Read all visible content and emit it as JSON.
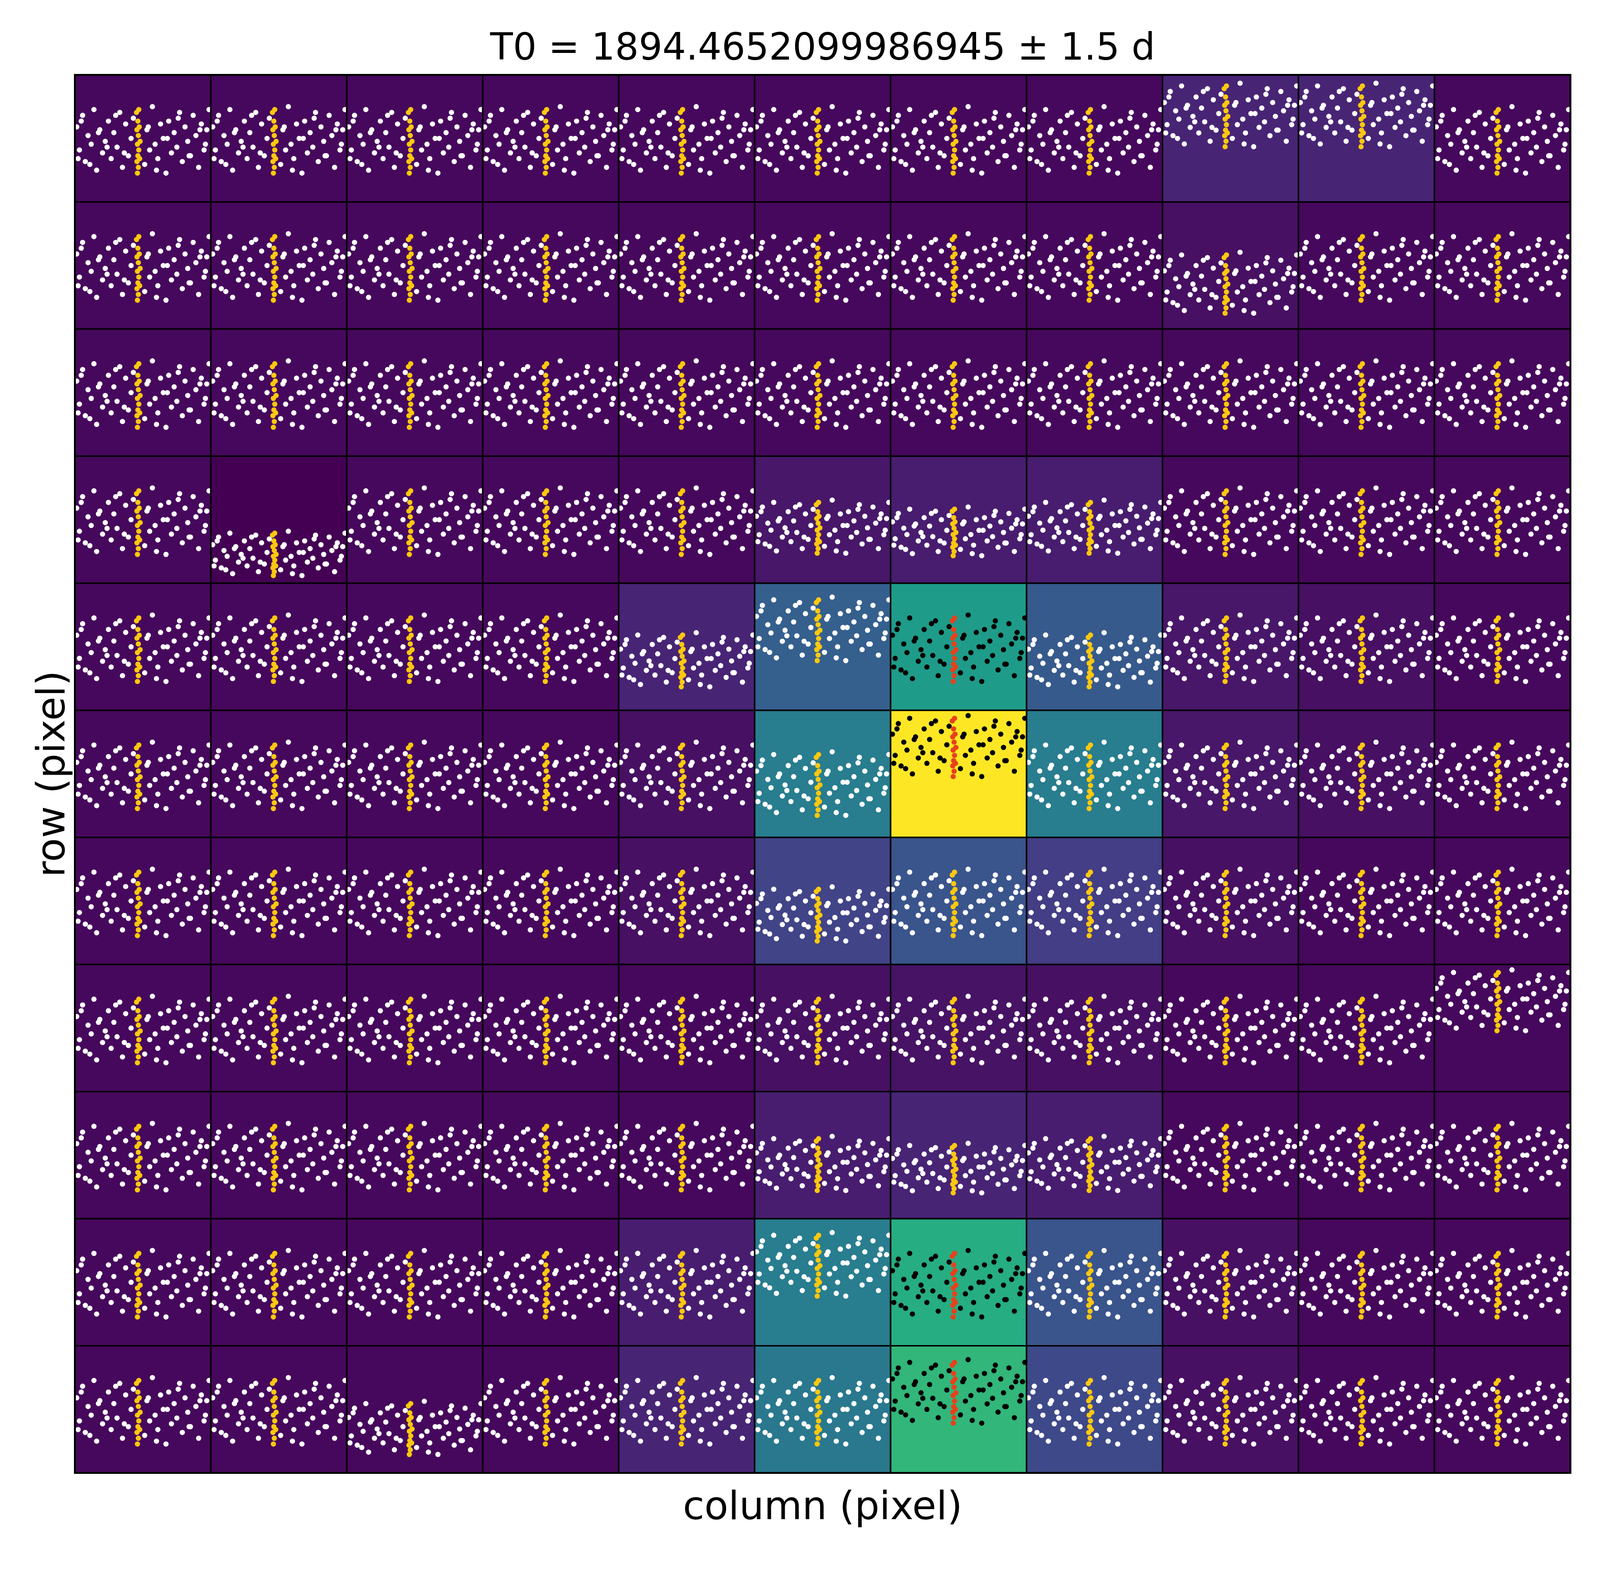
{
  "chart_data": {
    "type": "pixel_grid_scatter",
    "title": "T0 = 1894.4652099986945 ± 1.5 d",
    "x_label": "column (pixel)",
    "y_label": "row (pixel)",
    "tick_labels": false,
    "xlim": [
      -1.5,
      1.5
    ],
    "color_lim": [
      0,
      1
    ],
    "background": [
      [
        0.02,
        0.02,
        0.02,
        0.02,
        0.02,
        0.02,
        0.02,
        0.02,
        0.1,
        0.1,
        0.02
      ],
      [
        0.02,
        0.02,
        0.02,
        0.02,
        0.02,
        0.02,
        0.02,
        0.02,
        0.04,
        0.02,
        0.02
      ],
      [
        0.02,
        0.02,
        0.02,
        0.02,
        0.02,
        0.02,
        0.02,
        0.02,
        0.02,
        0.02,
        0.02
      ],
      [
        0.02,
        0.0,
        0.02,
        0.02,
        0.02,
        0.06,
        0.08,
        0.08,
        0.02,
        0.02,
        0.02
      ],
      [
        0.02,
        0.02,
        0.02,
        0.02,
        0.1,
        0.3,
        0.55,
        0.28,
        0.06,
        0.04,
        0.02
      ],
      [
        0.02,
        0.02,
        0.02,
        0.02,
        0.04,
        0.42,
        1.0,
        0.42,
        0.06,
        0.04,
        0.02
      ],
      [
        0.02,
        0.02,
        0.02,
        0.02,
        0.04,
        0.2,
        0.26,
        0.18,
        0.04,
        0.02,
        0.02
      ],
      [
        0.02,
        0.02,
        0.02,
        0.02,
        0.02,
        0.04,
        0.05,
        0.04,
        0.02,
        0.02,
        0.02
      ],
      [
        0.02,
        0.02,
        0.02,
        0.02,
        0.02,
        0.08,
        0.1,
        0.08,
        0.02,
        0.02,
        0.02
      ],
      [
        0.02,
        0.02,
        0.02,
        0.02,
        0.08,
        0.42,
        0.62,
        0.26,
        0.04,
        0.02,
        0.02
      ],
      [
        0.02,
        0.02,
        0.02,
        0.02,
        0.1,
        0.4,
        0.66,
        0.22,
        0.04,
        0.02,
        0.02
      ]
    ],
    "ylims": [
      [
        [
          0.978,
          1.022
        ],
        [
          0.978,
          1.022
        ],
        [
          0.978,
          1.022
        ],
        [
          0.978,
          1.022
        ],
        [
          0.978,
          1.022
        ],
        [
          0.978,
          1.022
        ],
        [
          0.978,
          1.022
        ],
        [
          0.978,
          1.022
        ],
        [
          0.968,
          1.014
        ],
        [
          0.968,
          1.014
        ],
        [
          0.978,
          1.022
        ]
      ],
      [
        [
          0.978,
          1.022
        ],
        [
          0.978,
          1.022
        ],
        [
          0.978,
          1.022
        ],
        [
          0.978,
          1.022
        ],
        [
          0.978,
          1.022
        ],
        [
          0.978,
          1.022
        ],
        [
          0.978,
          1.022
        ],
        [
          0.978,
          1.022
        ],
        [
          0.982,
          1.03
        ],
        [
          0.978,
          1.022
        ],
        [
          0.978,
          1.022
        ]
      ],
      [
        [
          0.978,
          1.022
        ],
        [
          0.978,
          1.022
        ],
        [
          0.978,
          1.022
        ],
        [
          0.978,
          1.022
        ],
        [
          0.978,
          1.022
        ],
        [
          0.978,
          1.022
        ],
        [
          0.978,
          1.022
        ],
        [
          0.978,
          1.022
        ],
        [
          0.978,
          1.022
        ],
        [
          0.978,
          1.022
        ],
        [
          0.978,
          1.022
        ]
      ],
      [
        [
          0.978,
          1.022
        ],
        [
          0.984,
          1.05
        ],
        [
          0.978,
          1.022
        ],
        [
          0.978,
          1.022
        ],
        [
          0.978,
          1.022
        ],
        [
          0.975,
          1.03
        ],
        [
          0.975,
          1.035
        ],
        [
          0.975,
          1.03
        ],
        [
          0.978,
          1.022
        ],
        [
          0.978,
          1.022
        ],
        [
          0.978,
          1.022
        ]
      ],
      [
        [
          0.978,
          1.022
        ],
        [
          0.978,
          1.022
        ],
        [
          0.978,
          1.022
        ],
        [
          0.978,
          1.022
        ],
        [
          0.978,
          1.032
        ],
        [
          0.97,
          1.016
        ],
        [
          0.978,
          1.022
        ],
        [
          0.978,
          1.032
        ],
        [
          0.978,
          1.022
        ],
        [
          0.978,
          1.022
        ],
        [
          0.978,
          1.022
        ]
      ],
      [
        [
          0.978,
          1.022
        ],
        [
          0.978,
          1.022
        ],
        [
          0.978,
          1.022
        ],
        [
          0.978,
          1.022
        ],
        [
          0.978,
          1.022
        ],
        [
          0.98,
          1.026
        ],
        [
          0.965,
          1.013
        ],
        [
          0.978,
          1.022
        ],
        [
          0.978,
          1.022
        ],
        [
          0.978,
          1.022
        ],
        [
          0.978,
          1.022
        ]
      ],
      [
        [
          0.978,
          1.022
        ],
        [
          0.978,
          1.022
        ],
        [
          0.978,
          1.022
        ],
        [
          0.978,
          1.022
        ],
        [
          0.978,
          1.022
        ],
        [
          0.978,
          1.032
        ],
        [
          0.978,
          1.022
        ],
        [
          0.978,
          1.022
        ],
        [
          0.978,
          1.022
        ],
        [
          0.978,
          1.022
        ],
        [
          0.978,
          1.022
        ]
      ],
      [
        [
          0.978,
          1.022
        ],
        [
          0.978,
          1.022
        ],
        [
          0.978,
          1.022
        ],
        [
          0.978,
          1.022
        ],
        [
          0.978,
          1.022
        ],
        [
          0.978,
          1.022
        ],
        [
          0.978,
          1.022
        ],
        [
          0.978,
          1.022
        ],
        [
          0.978,
          1.022
        ],
        [
          0.978,
          1.022
        ],
        [
          0.965,
          1.013
        ]
      ],
      [
        [
          0.978,
          1.022
        ],
        [
          0.978,
          1.022
        ],
        [
          0.978,
          1.022
        ],
        [
          0.978,
          1.022
        ],
        [
          0.978,
          1.022
        ],
        [
          0.976,
          1.03
        ],
        [
          0.976,
          1.035
        ],
        [
          0.976,
          1.03
        ],
        [
          0.978,
          1.022
        ],
        [
          0.978,
          1.022
        ],
        [
          0.978,
          1.022
        ]
      ],
      [
        [
          0.978,
          1.022
        ],
        [
          0.978,
          1.022
        ],
        [
          0.978,
          1.022
        ],
        [
          0.978,
          1.022
        ],
        [
          0.978,
          1.022
        ],
        [
          0.97,
          1.016
        ],
        [
          0.978,
          1.022
        ],
        [
          0.978,
          1.022
        ],
        [
          0.978,
          1.022
        ],
        [
          0.978,
          1.022
        ],
        [
          0.978,
          1.022
        ]
      ],
      [
        [
          0.978,
          1.022
        ],
        [
          0.978,
          1.022
        ],
        [
          0.98,
          1.035
        ],
        [
          0.978,
          1.022
        ],
        [
          0.978,
          1.022
        ],
        [
          0.978,
          1.022
        ],
        [
          0.97,
          1.016
        ],
        [
          0.978,
          1.022
        ],
        [
          0.978,
          1.022
        ],
        [
          0.978,
          1.022
        ],
        [
          0.978,
          1.022
        ]
      ]
    ],
    "aperture": [
      [
        4,
        6
      ],
      [
        5,
        6
      ],
      [
        9,
        6
      ],
      [
        10,
        6
      ]
    ],
    "series": [
      {
        "colors": [
          "#ffffff",
          "#000000"
        ],
        "marker": "circle",
        "x": [
          -1.46,
          -1.4,
          -1.33,
          -1.27,
          -1.21,
          -1.14,
          -1.08,
          -1.02,
          -0.95,
          -0.89,
          -0.83,
          -0.76,
          -0.7,
          -0.64,
          -0.57,
          -0.51,
          -0.45,
          -0.38,
          -0.32,
          -0.26,
          -0.21,
          0.04,
          0.09,
          0.15,
          0.21,
          0.27,
          0.33,
          0.39,
          0.45,
          0.51,
          0.57,
          0.63,
          0.69,
          0.75,
          0.81,
          0.87,
          0.93,
          0.99,
          1.05,
          1.11,
          1.17,
          1.23,
          1.29,
          1.35,
          1.41,
          1.46,
          -1.43,
          1.38,
          -1.36,
          -1.17,
          -0.98,
          -0.79,
          -0.6,
          -0.41,
          0.12,
          0.3,
          0.54,
          0.78,
          1.02,
          1.26
        ],
        "values": [
          1.004,
          0.996,
          1.008,
          0.992,
          1.001,
          0.998,
          1.01,
          0.989,
          1.003,
          0.995,
          0.999,
          1.006,
          0.993,
          1.002,
          0.997,
          1.009,
          0.99,
          1.005,
          0.994,
          1.0,
          1.007,
          0.991,
          1.003,
          0.996,
          1.011,
          0.998,
          0.993,
          1.005,
          1.0,
          0.988,
          1.006,
          0.995,
          1.002,
          0.997,
          1.009,
          0.992,
          1.004,
          0.999,
          0.994,
          1.008,
          1.001,
          0.99,
          1.005,
          0.996,
          1.003,
          1.01,
          0.993,
          0.998,
          1.006,
          0.991,
          1.002,
          0.997,
          1.008,
          0.995,
          1.004,
          0.989,
          1.0,
          1.007,
          0.994,
          1.003
        ]
      },
      {
        "colors": [
          "#fcc80f",
          "#e8401c"
        ],
        "marker": "circle",
        "x": [
          -0.14,
          -0.13,
          -0.13,
          -0.12,
          -0.12,
          -0.11,
          -0.11,
          -0.1,
          -0.1,
          -0.09,
          -0.09,
          -0.08,
          -0.07,
          -0.06
        ],
        "values": [
          1.009,
          0.992,
          1.003,
          0.988,
          0.998,
          1.006,
          0.994,
          1.001,
          0.99,
          1.01,
          0.996,
          1.004,
          0.993,
          0.999
        ]
      }
    ]
  }
}
